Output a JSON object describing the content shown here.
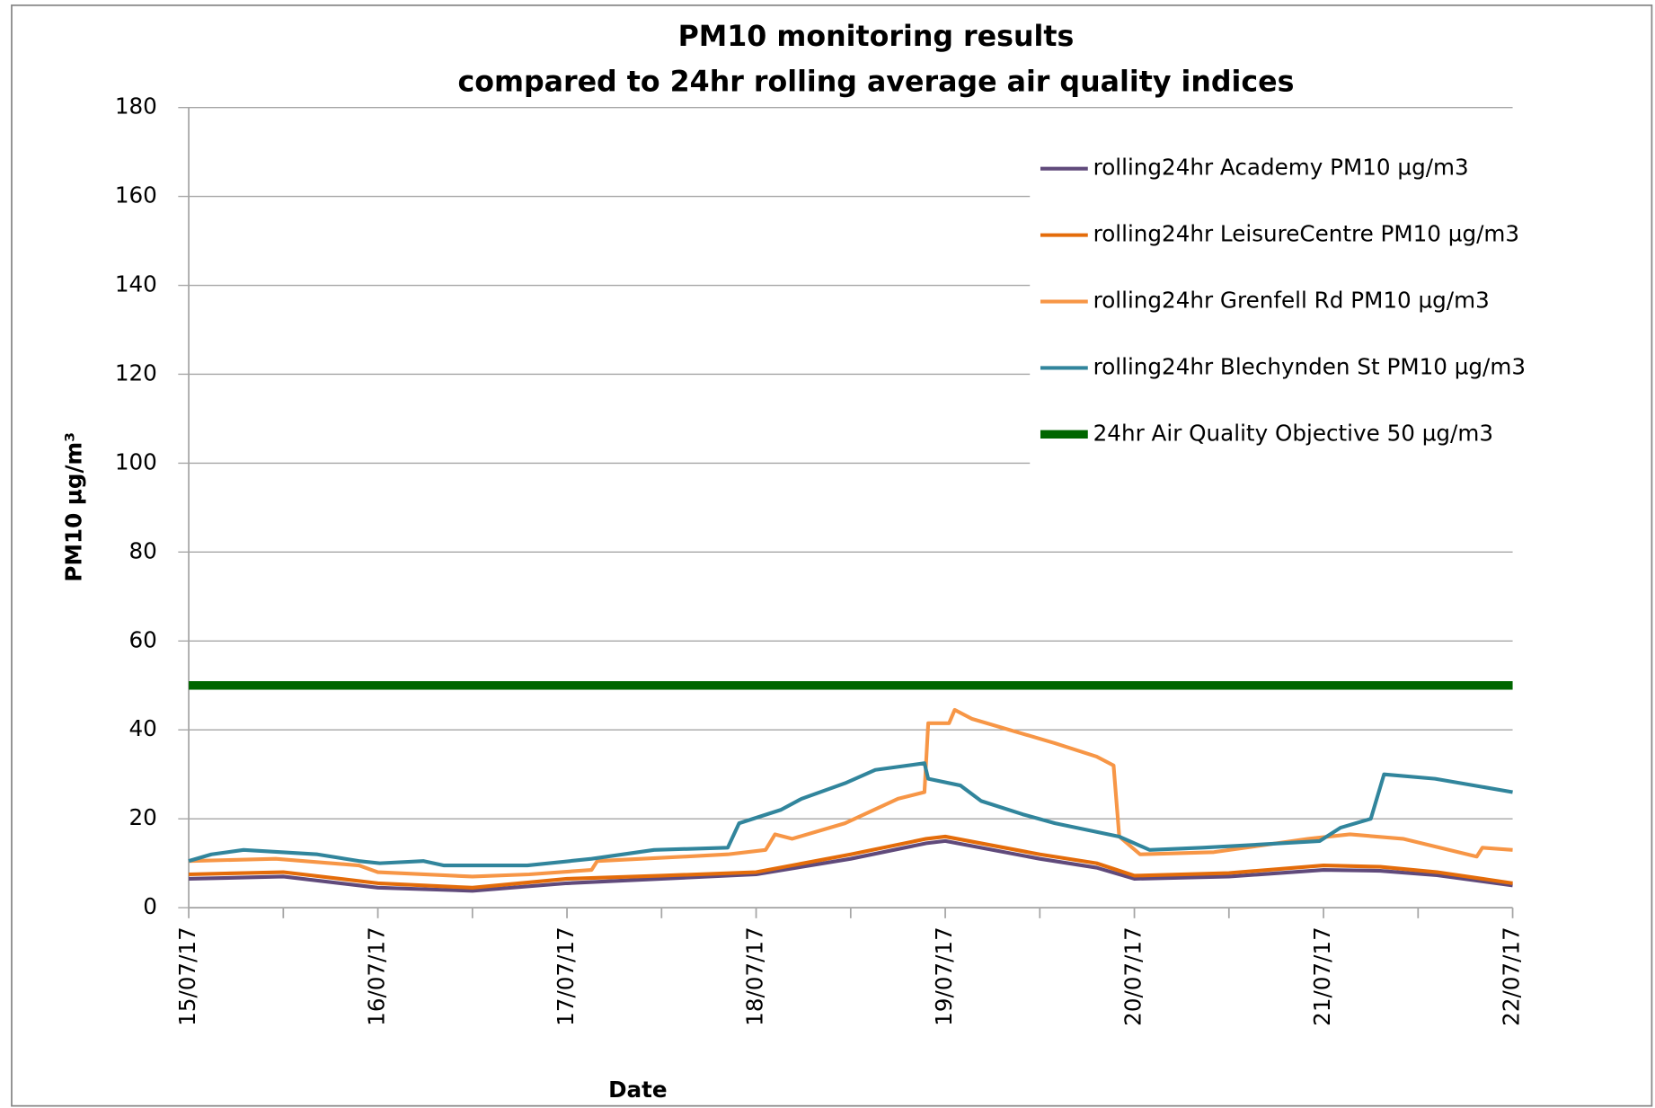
{
  "chart_data": {
    "type": "line",
    "title": [
      "PM10 monitoring results",
      "compared to 24hr rolling average air quality indices"
    ],
    "xlabel": "Date",
    "ylabel": "PM10 µg/m³",
    "xlim": [
      0,
      7
    ],
    "xticks": [
      {
        "value": 0,
        "label": "15/07/17"
      },
      {
        "value": 1,
        "label": "16/07/17"
      },
      {
        "value": 2,
        "label": "17/07/17"
      },
      {
        "value": 3,
        "label": "18/07/17"
      },
      {
        "value": 4,
        "label": "19/07/17"
      },
      {
        "value": 5,
        "label": "20/07/17"
      },
      {
        "value": 6,
        "label": "21/07/17"
      },
      {
        "value": 7,
        "label": "22/07/17"
      }
    ],
    "x_minor_ticks": [
      0.5,
      1.5,
      2.5,
      3.5,
      4.5,
      5.5,
      6.5
    ],
    "ylim": [
      0,
      180
    ],
    "yticks": [
      0,
      20,
      40,
      60,
      80,
      100,
      120,
      140,
      160,
      180
    ],
    "grid": true,
    "legend": "upper right",
    "series": [
      {
        "name": "rolling24hr Academy PM10 µg/m3",
        "color": "#604a7b",
        "width": 3.5,
        "x": [
          0,
          0.5,
          1,
          1.5,
          2,
          2.5,
          3,
          3.5,
          3.9,
          4,
          4.5,
          4.8,
          5,
          5.5,
          6,
          6.3,
          6.6,
          7
        ],
        "values": [
          6.5,
          7,
          4.5,
          3.8,
          5.5,
          6.5,
          7.5,
          11,
          14.5,
          15,
          11,
          9,
          6.5,
          7,
          8.5,
          8.3,
          7.3,
          5
        ]
      },
      {
        "name": "rolling24hr LeisureCentre PM10 µg/m3",
        "color": "#e46c0a",
        "width": 3.5,
        "x": [
          0,
          0.5,
          1,
          1.5,
          2,
          2.5,
          3,
          3.5,
          3.9,
          4,
          4.5,
          4.8,
          5,
          5.5,
          6,
          6.3,
          6.6,
          7
        ],
        "values": [
          7.5,
          8,
          5.5,
          4.5,
          6.5,
          7.2,
          8,
          12,
          15.5,
          16,
          12,
          10,
          7.2,
          7.8,
          9.5,
          9.2,
          8,
          5.5
        ]
      },
      {
        "name": "rolling24hr Grenfell Rd PM10 µg/m3",
        "color": "#f79646",
        "width": 3.5,
        "x": [
          0,
          0.46,
          0.9,
          1.0,
          1.5,
          1.8,
          2.13,
          2.16,
          2.63,
          2.85,
          3.05,
          3.1,
          3.19,
          3.47,
          3.75,
          3.89,
          3.91,
          4.02,
          4.05,
          4.14,
          4.58,
          4.8,
          4.89,
          4.92,
          5.03,
          5.42,
          5.92,
          6.14,
          6.42,
          6.81,
          6.84,
          7
        ],
        "values": [
          10.5,
          11,
          9.5,
          8,
          7,
          7.5,
          8.5,
          10.5,
          11.5,
          12,
          13,
          16.5,
          15.5,
          19,
          24.5,
          26,
          41.5,
          41.5,
          44.5,
          42.5,
          37,
          34,
          32,
          16,
          12,
          12.5,
          15.5,
          16.5,
          15.5,
          11.5,
          13.5,
          13
        ]
      },
      {
        "name": "rolling24hr Blechynden St PM10 µg/m3",
        "color": "#31859c",
        "width": 3.5,
        "x": [
          0,
          0.12,
          0.29,
          0.68,
          0.9,
          1.01,
          1.24,
          1.35,
          1.79,
          2.13,
          2.46,
          2.85,
          2.91,
          3.13,
          3.24,
          3.47,
          3.63,
          3.89,
          3.91,
          4.08,
          4.19,
          4.41,
          4.58,
          4.92,
          5.08,
          5.36,
          5.58,
          5.98,
          6.09,
          6.25,
          6.32,
          6.59,
          7
        ],
        "values": [
          10.5,
          12,
          13,
          12,
          10.5,
          10,
          10.5,
          9.5,
          9.5,
          11,
          13,
          13.5,
          19,
          22,
          24.5,
          28,
          31,
          32.5,
          29,
          27.5,
          24,
          21,
          19,
          16,
          13,
          13.5,
          14,
          15,
          18,
          20,
          30,
          29,
          26
        ]
      },
      {
        "name": "24hr Air Quality Objective 50 µg/m3",
        "color": "#006600",
        "width": 8,
        "x": [
          0,
          7
        ],
        "values": [
          50,
          50
        ]
      }
    ]
  }
}
